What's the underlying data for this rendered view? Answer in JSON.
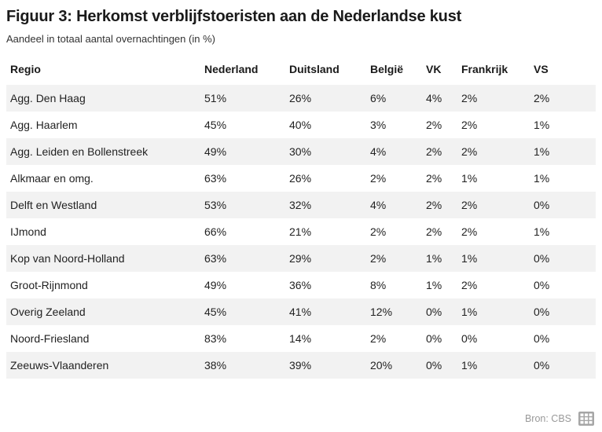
{
  "figure": {
    "title": "Figuur 3: Herkomst verblijfstoeristen aan de Nederlandse kust",
    "subtitle": "Aandeel in totaal aantal overnachtingen (in %)",
    "source_label": "Bron: CBS",
    "source_icon": "table-grid-icon"
  },
  "colors": {
    "stripe": "#f2f2f2",
    "text": "#222222",
    "title": "#1a1a1a",
    "muted": "#999999",
    "icon_gray": "#a6a6a6"
  },
  "chart_data": {
    "type": "table",
    "title": "Figuur 3: Herkomst verblijfstoeristen aan de Nederlandse kust",
    "subtitle": "Aandeel in totaal aantal overnachtingen (in %)",
    "columns": [
      "Regio",
      "Nederland",
      "Duitsland",
      "België",
      "VK",
      "Frankrijk",
      "VS"
    ],
    "rows": [
      {
        "region": "Agg. Den Haag",
        "values": [
          "51%",
          "26%",
          "6%",
          "4%",
          "2%",
          "2%"
        ]
      },
      {
        "region": "Agg. Haarlem",
        "values": [
          "45%",
          "40%",
          "3%",
          "2%",
          "2%",
          "1%"
        ]
      },
      {
        "region": "Agg. Leiden en Bollenstreek",
        "values": [
          "49%",
          "30%",
          "4%",
          "2%",
          "2%",
          "1%"
        ]
      },
      {
        "region": "Alkmaar en omg.",
        "values": [
          "63%",
          "26%",
          "2%",
          "2%",
          "1%",
          "1%"
        ]
      },
      {
        "region": "Delft en Westland",
        "values": [
          "53%",
          "32%",
          "4%",
          "2%",
          "2%",
          "0%"
        ]
      },
      {
        "region": "IJmond",
        "values": [
          "66%",
          "21%",
          "2%",
          "2%",
          "2%",
          "1%"
        ]
      },
      {
        "region": "Kop van Noord-Holland",
        "values": [
          "63%",
          "29%",
          "2%",
          "1%",
          "1%",
          "0%"
        ]
      },
      {
        "region": "Groot-Rijnmond",
        "values": [
          "49%",
          "36%",
          "8%",
          "1%",
          "2%",
          "0%"
        ]
      },
      {
        "region": "Overig Zeeland",
        "values": [
          "45%",
          "41%",
          "12%",
          "0%",
          "1%",
          "0%"
        ]
      },
      {
        "region": "Noord-Friesland",
        "values": [
          "83%",
          "14%",
          "2%",
          "0%",
          "0%",
          "0%"
        ]
      },
      {
        "region": "Zeeuws-Vlaanderen",
        "values": [
          "38%",
          "39%",
          "20%",
          "0%",
          "1%",
          "0%"
        ]
      }
    ],
    "source": "Bron: CBS",
    "layout": {
      "striped": true,
      "first_row_striped": true,
      "grid": false
    }
  }
}
